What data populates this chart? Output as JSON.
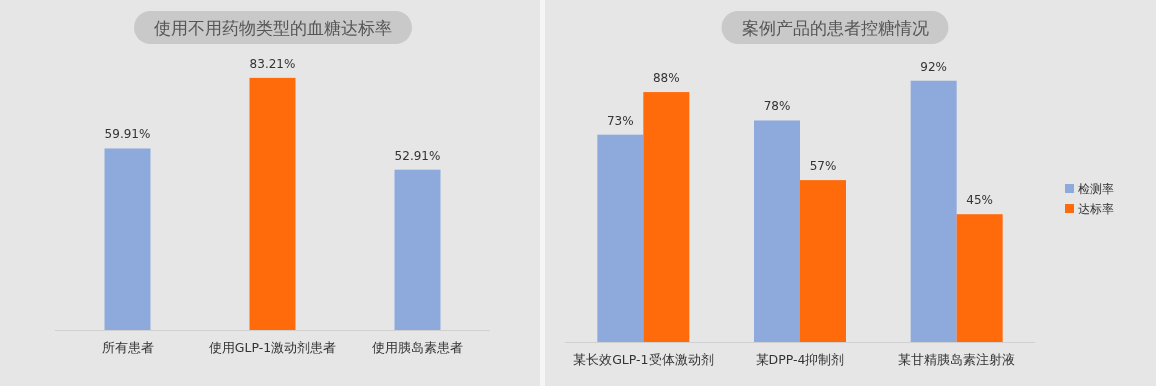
{
  "chart_data": [
    {
      "type": "bar",
      "title": "使用不用药物类型的血糖达标率",
      "categories": [
        "所有患者",
        "使用GLP-1激动剂患者",
        "使用胰岛素患者"
      ],
      "values": [
        59.91,
        83.21,
        52.91
      ],
      "colors": [
        "#8eaadc",
        "#ff6b0a",
        "#8eaadc"
      ],
      "value_labels": [
        "59.91%",
        "83.21%",
        "52.91%"
      ],
      "legend": false
    },
    {
      "type": "bar",
      "title": "案例产品的患者控糖情况",
      "categories": [
        "某长效GLP-1受体激动剂",
        "某DPP-4抑制剂",
        "某甘精胰岛素注射液"
      ],
      "series": [
        {
          "name": "检测率",
          "color": "#8eaadc",
          "values": [
            73,
            78,
            92
          ],
          "value_labels": [
            "73%",
            "78%",
            "92%"
          ]
        },
        {
          "name": "达标率",
          "color": "#ff6b0a",
          "values": [
            88,
            57,
            45
          ],
          "value_labels": [
            "88%",
            "57%",
            "45%"
          ]
        }
      ],
      "legend": "right"
    }
  ]
}
